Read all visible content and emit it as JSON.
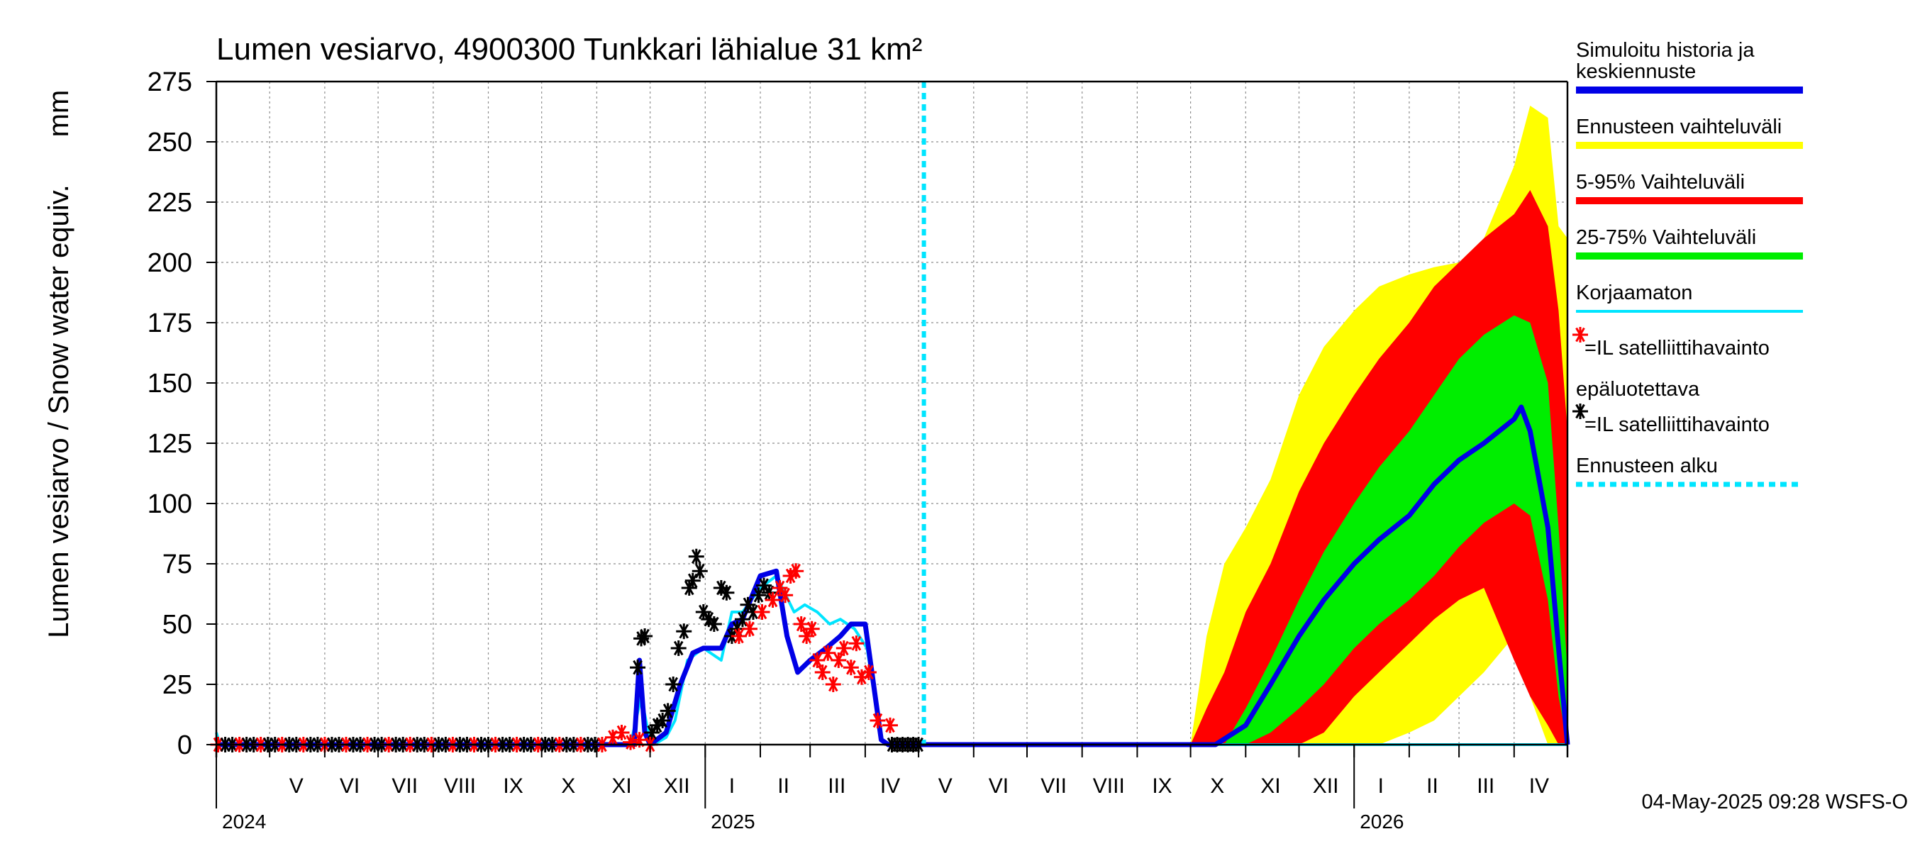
{
  "chart_data": {
    "type": "area",
    "title": "Lumen vesiarvo, 4900300 Tunkkari lähialue 31 km²",
    "ylabel": "Lumen vesiarvo / Snow water equiv.",
    "yunit": "mm",
    "ylim": [
      0,
      275
    ],
    "yticks": [
      0,
      25,
      50,
      75,
      100,
      125,
      150,
      175,
      200,
      225,
      250,
      275
    ],
    "xlim": [
      "2024-04-01",
      "2026-05-01"
    ],
    "forecast_start": "2025-05-04",
    "months": [
      {
        "label": "V",
        "mid": "2024-05-16"
      },
      {
        "label": "VI",
        "mid": "2024-06-15"
      },
      {
        "label": "VII",
        "mid": "2024-07-16"
      },
      {
        "label": "VIII",
        "mid": "2024-08-16"
      },
      {
        "label": "IX",
        "mid": "2024-09-15"
      },
      {
        "label": "X",
        "mid": "2024-10-16"
      },
      {
        "label": "XI",
        "mid": "2024-11-15"
      },
      {
        "label": "XII",
        "mid": "2024-12-16"
      },
      {
        "label": "I",
        "mid": "2025-01-16"
      },
      {
        "label": "II",
        "mid": "2025-02-14"
      },
      {
        "label": "III",
        "mid": "2025-03-16"
      },
      {
        "label": "IV",
        "mid": "2025-04-15"
      },
      {
        "label": "V",
        "mid": "2025-05-16"
      },
      {
        "label": "VI",
        "mid": "2025-06-15"
      },
      {
        "label": "VII",
        "mid": "2025-07-16"
      },
      {
        "label": "VIII",
        "mid": "2025-08-16"
      },
      {
        "label": "IX",
        "mid": "2025-09-15"
      },
      {
        "label": "X",
        "mid": "2025-10-16"
      },
      {
        "label": "XI",
        "mid": "2025-11-15"
      },
      {
        "label": "XII",
        "mid": "2025-12-16"
      },
      {
        "label": "I",
        "mid": "2026-01-16"
      },
      {
        "label": "II",
        "mid": "2026-02-14"
      },
      {
        "label": "III",
        "mid": "2026-03-16"
      },
      {
        "label": "IV",
        "mid": "2026-04-15"
      }
    ],
    "month_grid": [
      "2024-05-01",
      "2024-06-01",
      "2024-07-01",
      "2024-08-01",
      "2024-09-01",
      "2024-10-01",
      "2024-11-01",
      "2024-12-01",
      "2025-01-01",
      "2025-02-01",
      "2025-03-01",
      "2025-04-01",
      "2025-05-01",
      "2025-06-01",
      "2025-07-01",
      "2025-08-01",
      "2025-09-01",
      "2025-10-01",
      "2025-11-01",
      "2025-12-01",
      "2026-01-01",
      "2026-02-01",
      "2026-03-01",
      "2026-04-01"
    ],
    "years": [
      {
        "label": "2024",
        "start": "2024-04-01"
      },
      {
        "label": "2025",
        "start": "2025-01-01"
      },
      {
        "label": "2026",
        "start": "2026-01-01"
      }
    ],
    "series": [
      {
        "name": "Ennusteen vaihteluväli",
        "kind": "band",
        "color": "#ffff00",
        "x": [
          "2025-10-01",
          "2025-10-10",
          "2025-10-20",
          "2025-11-01",
          "2025-11-15",
          "2025-12-01",
          "2025-12-15",
          "2026-01-01",
          "2026-01-15",
          "2026-02-01",
          "2026-02-15",
          "2026-03-01",
          "2026-03-15",
          "2026-04-01",
          "2026-04-10",
          "2026-04-20",
          "2026-04-26",
          "2026-05-01"
        ],
        "upper": [
          0,
          45,
          75,
          90,
          110,
          145,
          165,
          180,
          190,
          195,
          198,
          200,
          210,
          240,
          265,
          260,
          215,
          210
        ],
        "lower": [
          0,
          0,
          0,
          0,
          0,
          0,
          0,
          0,
          0,
          5,
          10,
          20,
          30,
          45,
          20,
          0,
          0,
          0
        ]
      },
      {
        "name": "5-95% Vaihteluväli",
        "kind": "band",
        "color": "#ff0000",
        "x": [
          "2025-10-01",
          "2025-10-10",
          "2025-10-20",
          "2025-11-01",
          "2025-11-15",
          "2025-12-01",
          "2025-12-15",
          "2026-01-01",
          "2026-01-15",
          "2026-02-01",
          "2026-02-15",
          "2026-03-01",
          "2026-03-15",
          "2026-04-01",
          "2026-04-10",
          "2026-04-20",
          "2026-04-26",
          "2026-05-01"
        ],
        "upper": [
          0,
          15,
          30,
          55,
          75,
          105,
          125,
          145,
          160,
          175,
          190,
          200,
          210,
          220,
          230,
          215,
          180,
          130
        ],
        "lower": [
          0,
          0,
          0,
          0,
          0,
          0,
          5,
          20,
          30,
          42,
          52,
          60,
          65,
          35,
          20,
          8,
          0,
          0
        ]
      },
      {
        "name": "25-75% Vaihteluväli",
        "kind": "band",
        "color": "#00ee00",
        "x": [
          "2025-10-20",
          "2025-11-01",
          "2025-11-15",
          "2025-12-01",
          "2025-12-15",
          "2026-01-01",
          "2026-01-15",
          "2026-02-01",
          "2026-02-15",
          "2026-03-01",
          "2026-03-15",
          "2026-04-01",
          "2026-04-10",
          "2026-04-20",
          "2026-04-26",
          "2026-05-01"
        ],
        "upper": [
          0,
          15,
          35,
          60,
          80,
          100,
          115,
          130,
          145,
          160,
          170,
          178,
          175,
          150,
          90,
          30
        ],
        "lower": [
          0,
          0,
          5,
          15,
          25,
          40,
          50,
          60,
          70,
          82,
          92,
          100,
          95,
          60,
          20,
          0
        ]
      },
      {
        "name": "Korjaamaton",
        "kind": "line",
        "color": "#00e5ff",
        "x": [
          "2024-04-01",
          "2024-04-03",
          "2024-04-05",
          "2024-11-20",
          "2024-11-26",
          "2024-11-30",
          "2024-12-03",
          "2024-12-10",
          "2024-12-15",
          "2024-12-22",
          "2024-12-31",
          "2025-01-10",
          "2025-01-16",
          "2025-01-22",
          "2025-02-01",
          "2025-02-10",
          "2025-02-20",
          "2025-02-26",
          "2025-03-05",
          "2025-03-12",
          "2025-03-18",
          "2025-03-26",
          "2025-04-02",
          "2025-04-10",
          "2025-04-14",
          "2025-05-01",
          "2026-05-01"
        ],
        "y": [
          5,
          0,
          0,
          0,
          20,
          5,
          0,
          3,
          10,
          35,
          40,
          35,
          55,
          55,
          65,
          70,
          55,
          58,
          55,
          50,
          52,
          48,
          40,
          2,
          0,
          0,
          0
        ]
      },
      {
        "name": "Simuloitu historia ja keskiennuste",
        "kind": "line",
        "color": "#0000e6",
        "x": [
          "2024-04-01",
          "2024-11-22",
          "2024-11-25",
          "2024-11-28",
          "2024-12-01",
          "2024-12-10",
          "2024-12-18",
          "2024-12-25",
          "2024-12-31",
          "2025-01-10",
          "2025-01-16",
          "2025-01-22",
          "2025-02-01",
          "2025-02-10",
          "2025-02-16",
          "2025-02-22",
          "2025-03-01",
          "2025-03-10",
          "2025-03-18",
          "2025-03-24",
          "2025-04-01",
          "2025-04-10",
          "2025-04-14",
          "2025-05-01",
          "2025-10-01",
          "2025-10-15",
          "2025-11-01",
          "2025-11-15",
          "2025-12-01",
          "2025-12-15",
          "2026-01-01",
          "2026-01-15",
          "2026-02-01",
          "2026-02-15",
          "2026-03-01",
          "2026-03-15",
          "2026-04-01",
          "2026-04-05",
          "2026-04-10",
          "2026-04-20",
          "2026-04-26",
          "2026-05-01"
        ],
        "y": [
          0,
          0,
          35,
          5,
          0,
          5,
          25,
          38,
          40,
          40,
          50,
          52,
          70,
          72,
          45,
          30,
          35,
          40,
          45,
          50,
          50,
          2,
          0,
          0,
          0,
          0,
          8,
          25,
          45,
          60,
          75,
          85,
          95,
          108,
          118,
          125,
          135,
          140,
          130,
          90,
          40,
          0
        ]
      }
    ],
    "observations_red": {
      "name": "=IL satelliittihavainto",
      "x": [
        "2024-11-10",
        "2024-11-15",
        "2024-11-20",
        "2024-11-25",
        "2024-12-01",
        "2025-01-20",
        "2025-01-26",
        "2025-02-02",
        "2025-02-08",
        "2025-02-12",
        "2025-02-15",
        "2025-02-18",
        "2025-02-21",
        "2025-02-24",
        "2025-02-27",
        "2025-03-02",
        "2025-03-05",
        "2025-03-08",
        "2025-03-11",
        "2025-03-14",
        "2025-03-17",
        "2025-03-20",
        "2025-03-24",
        "2025-03-27",
        "2025-03-30",
        "2025-04-03",
        "2025-04-08",
        "2025-04-15"
      ],
      "y": [
        3,
        5,
        1,
        2,
        0,
        45,
        48,
        55,
        60,
        65,
        62,
        70,
        72,
        50,
        45,
        48,
        35,
        30,
        38,
        25,
        35,
        40,
        32,
        42,
        28,
        30,
        10,
        8
      ]
    },
    "observations_black": {
      "name": "=IL satelliittihavainto",
      "x": [
        "2024-11-24",
        "2024-11-26",
        "2024-11-28",
        "2024-12-02",
        "2024-12-05",
        "2024-12-08",
        "2024-12-11",
        "2024-12-14",
        "2024-12-17",
        "2024-12-20",
        "2024-12-23",
        "2024-12-25",
        "2024-12-27",
        "2024-12-29",
        "2024-12-31",
        "2025-01-03",
        "2025-01-06",
        "2025-01-10",
        "2025-01-13",
        "2025-01-16",
        "2025-01-19",
        "2025-01-22",
        "2025-01-25",
        "2025-01-28",
        "2025-01-31",
        "2025-02-03",
        "2025-02-06"
      ],
      "y": [
        32,
        44,
        45,
        5,
        8,
        10,
        14,
        25,
        40,
        47,
        65,
        68,
        78,
        72,
        55,
        52,
        50,
        65,
        63,
        45,
        48,
        52,
        58,
        55,
        62,
        66,
        63
      ]
    },
    "legend": [
      {
        "label_lines": [
          "Simuloitu historia ja",
          "keskiennuste"
        ],
        "color": "#0000e6",
        "style": "solid"
      },
      {
        "label_lines": [
          "Ennusteen vaihteluväli"
        ],
        "color": "#ffff00",
        "style": "solid"
      },
      {
        "label_lines": [
          "5-95% Vaihteluväli"
        ],
        "color": "#ff0000",
        "style": "solid"
      },
      {
        "label_lines": [
          "25-75% Vaihteluväli"
        ],
        "color": "#00ee00",
        "style": "solid"
      },
      {
        "label_lines": [
          "Korjaamaton"
        ],
        "color": "#00e5ff",
        "style": "thin"
      },
      {
        "label_lines": [
          "=IL satelliittihavainto"
        ],
        "color": "#ff0000",
        "style": "star"
      },
      {
        "label_lines": [
          "epäluotettava"
        ],
        "color": "#000000",
        "style": "none"
      },
      {
        "label_lines": [
          "=IL satelliittihavainto"
        ],
        "color": "#000000",
        "style": "star"
      },
      {
        "label_lines": [
          "Ennusteen alku"
        ],
        "color": "#00e5ff",
        "style": "dashed"
      }
    ],
    "timestamp": "04-May-2025 09:28 WSFS-O"
  }
}
